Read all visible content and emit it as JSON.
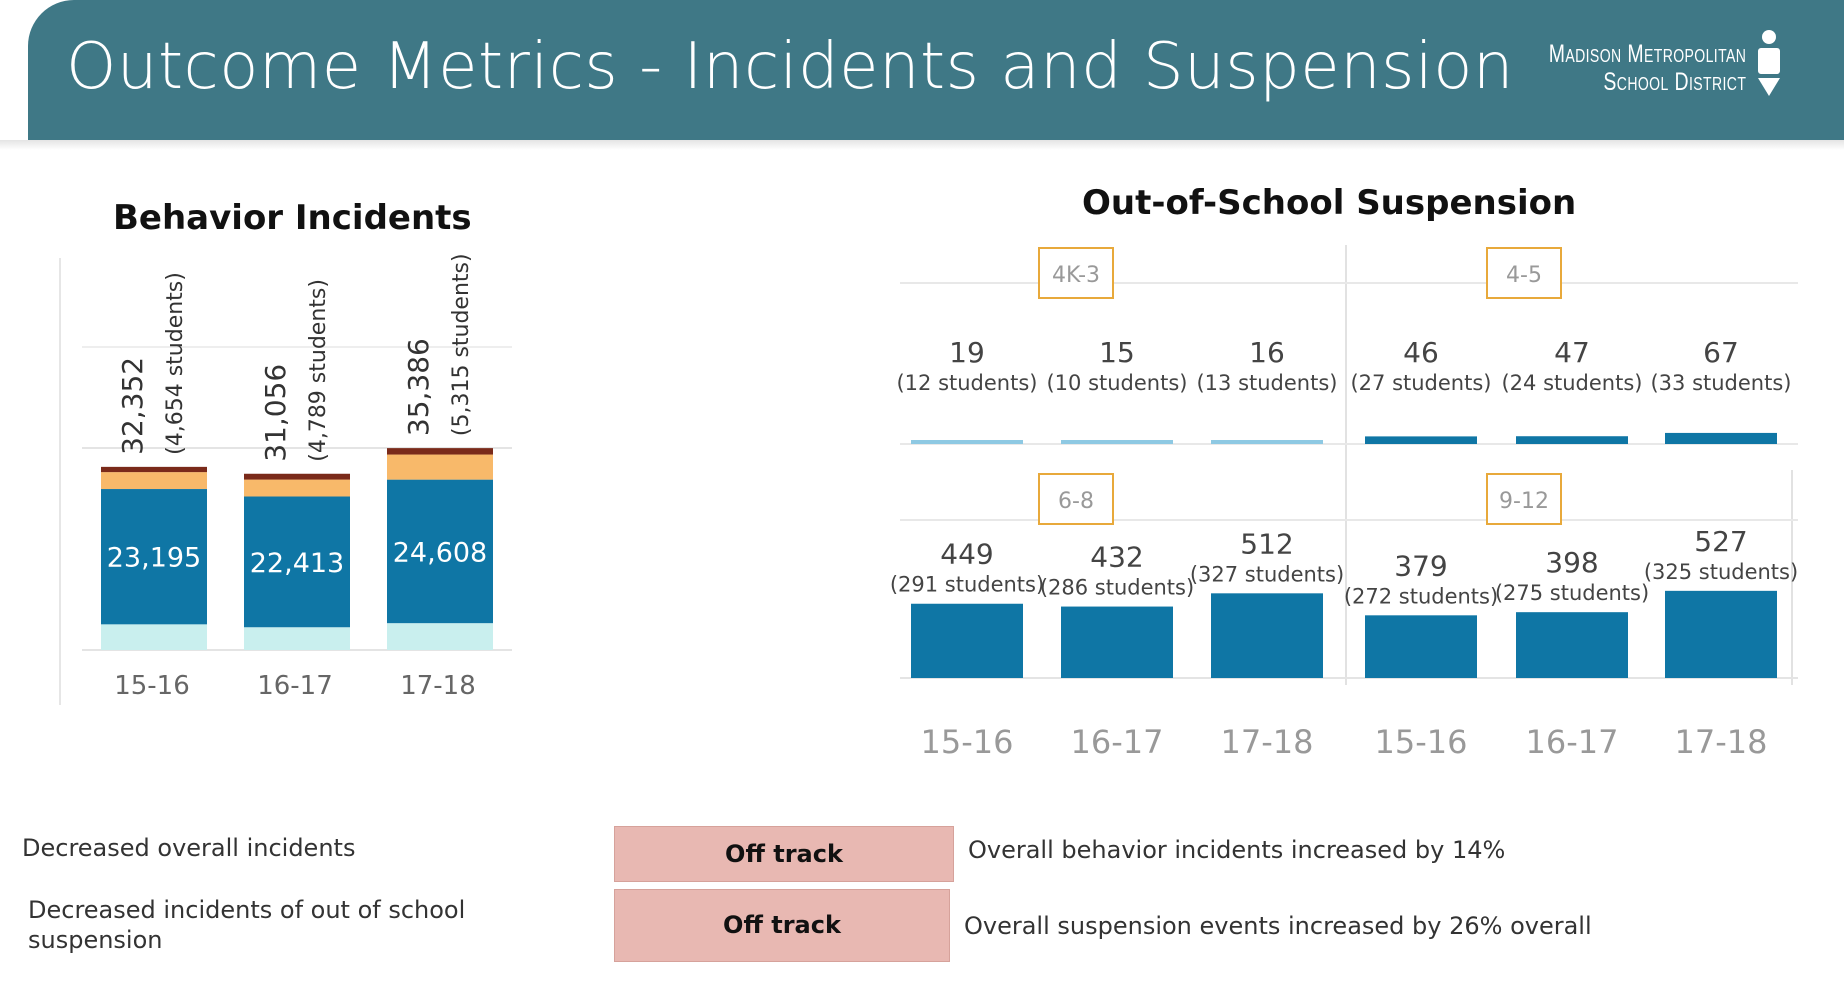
{
  "header": {
    "title": "Outcome Metrics - Incidents and Suspension",
    "logo_line1": "Madison Metropolitan",
    "logo_line2": "School District"
  },
  "colors": {
    "header_bg": "#3f7886",
    "bar_main": "#0f76a5",
    "bar_light": "#c9efee",
    "bar_orange": "#f8b96a",
    "bar_dark": "#7a2a1a",
    "status_bg": "#e8b8b2",
    "panel_label_border": "#e8a93b"
  },
  "chart_data": [
    {
      "type": "bar",
      "title": "Behavior Incidents",
      "categories": [
        "15-16",
        "16-17",
        "17-18"
      ],
      "totals": [
        {
          "value": "32,352",
          "students": "(4,654 students)"
        },
        {
          "value": "31,056",
          "students": "(4,789 students)"
        },
        {
          "value": "35,386",
          "students": "(5,315 students)"
        }
      ],
      "series": [
        {
          "values": [
            4400,
            3900,
            4600
          ]
        },
        {
          "values": [
            23195,
            22413,
            24608
          ],
          "labels": [
            "23,195",
            "22,413",
            "24,608"
          ]
        },
        {
          "values": [
            2900,
            2900,
            4300
          ]
        },
        {
          "values": [
            900,
            1000,
            1100
          ]
        }
      ],
      "ylim": [
        0,
        60000
      ],
      "grid": true
    },
    {
      "type": "bar",
      "title": "Out-of-School Suspension",
      "categories": [
        "15-16",
        "16-17",
        "17-18"
      ],
      "panels": [
        {
          "label": "4K-3",
          "values": [
            19,
            15,
            16
          ],
          "value_labels": [
            "19",
            "15",
            "16"
          ],
          "students": [
            "(12 students)",
            "(10 students)",
            "(13 students)"
          ],
          "color": "#8ec9e3"
        },
        {
          "label": "4-5",
          "values": [
            46,
            47,
            67
          ],
          "value_labels": [
            "46",
            "47",
            "67"
          ],
          "students": [
            "(27 students)",
            "(24 students)",
            "(33 students)"
          ],
          "color": "#0f76a5"
        },
        {
          "label": "6-8",
          "values": [
            449,
            432,
            512
          ],
          "value_labels": [
            "449",
            "432",
            "512"
          ],
          "students": [
            "(291 students)",
            "(286 students)",
            "(327 students)"
          ],
          "color": "#0f76a5"
        },
        {
          "label": "9-12",
          "values": [
            379,
            398,
            527
          ],
          "value_labels": [
            "379",
            "398",
            "527"
          ],
          "students": [
            "(272 students)",
            "(275 students)",
            "(325 students)"
          ],
          "color": "#0f76a5"
        }
      ],
      "ylim": [
        0,
        1300
      ],
      "grid": true
    }
  ],
  "summary": [
    {
      "goal": "Decreased overall incidents",
      "status": "Off track",
      "detail": "Overall behavior incidents increased by 14%"
    },
    {
      "goal": "Decreased incidents of out of school suspension",
      "status": "Off track",
      "detail": "Overall suspension events increased by 26% overall"
    }
  ]
}
